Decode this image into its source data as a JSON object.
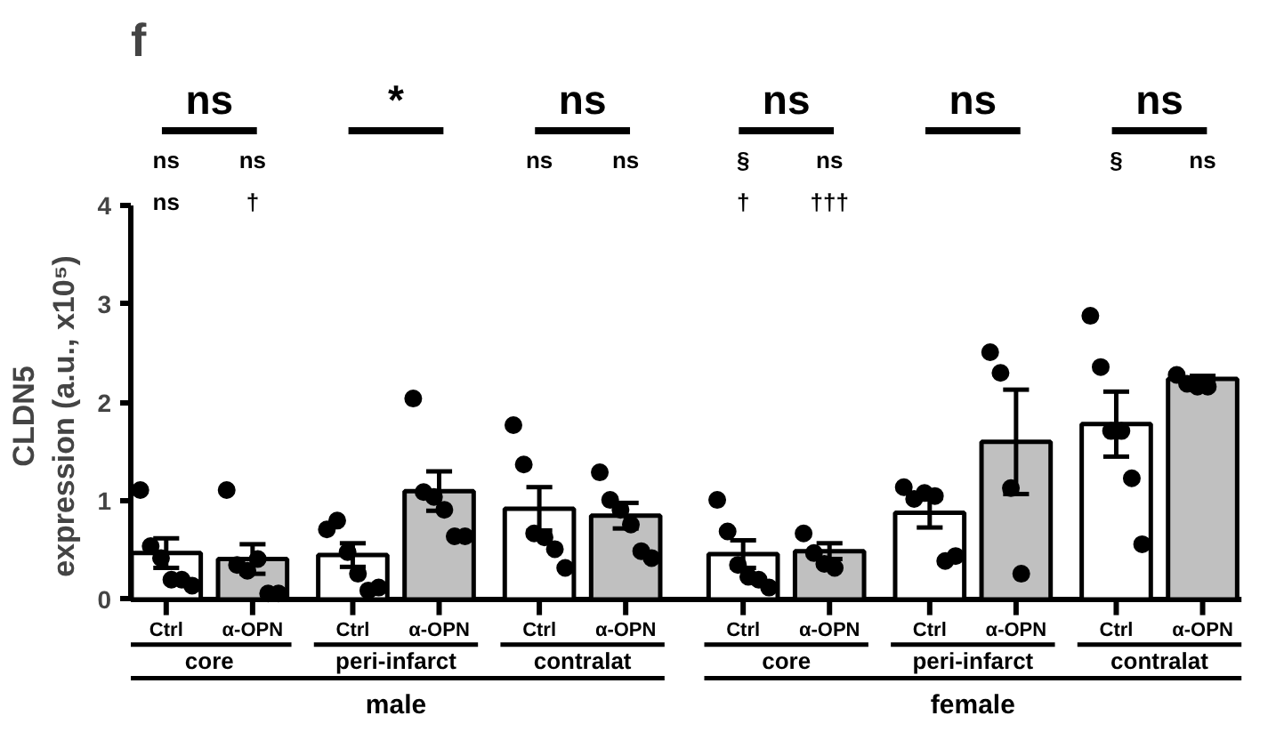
{
  "chart_data": {
    "type": "bar",
    "title": "f",
    "ylabel": "CLDN5\nexpression (a.u., x10⁵)",
    "categories": [
      "Ctrl",
      "α-OPN",
      "Ctrl",
      "α-OPN",
      "Ctrl",
      "α-OPN",
      "Ctrl",
      "α-OPN",
      "Ctrl",
      "α-OPN",
      "Ctrl",
      "α-OPN"
    ],
    "ylim": [
      0,
      4
    ],
    "yticks": [
      0,
      1,
      2,
      3,
      4
    ],
    "marker": "circle",
    "series": [
      {
        "type": "bar",
        "colors": [
          "#ffffff",
          "#c0c0c0",
          "#ffffff",
          "#c0c0c0",
          "#ffffff",
          "#c0c0c0",
          "#ffffff",
          "#c0c0c0",
          "#ffffff",
          "#c0c0c0",
          "#ffffff",
          "#c0c0c0"
        ],
        "values": [
          0.47,
          0.41,
          0.45,
          1.1,
          0.92,
          0.85,
          0.46,
          0.49,
          0.88,
          1.6,
          1.78,
          2.24
        ],
        "errors": [
          0.15,
          0.15,
          0.12,
          0.2,
          0.22,
          0.13,
          0.14,
          0.08,
          0.15,
          0.53,
          0.33,
          0.03
        ]
      },
      {
        "type": "scatter",
        "color": "#000000",
        "values": [
          1.11,
          1.11,
          0.71,
          2.04,
          1.77,
          1.29,
          1.01,
          0.67,
          1.14,
          2.51,
          2.88,
          2.28
        ]
      },
      {
        "type": "scatter",
        "color": "#000000",
        "values": [
          0.54,
          0.35,
          0.8,
          1.09,
          1.37,
          1.01,
          0.69,
          0.47,
          1.02,
          2.3,
          2.36,
          2.19
        ]
      },
      {
        "type": "scatter",
        "color": "#000000",
        "values": [
          0.42,
          0.29,
          0.48,
          1.04,
          0.67,
          0.91,
          0.35,
          0.36,
          1.08,
          1.13,
          1.71,
          2.16
        ]
      },
      {
        "type": "scatter",
        "color": "#000000",
        "values": [
          0.2,
          0.41,
          0.26,
          0.91,
          0.63,
          0.76,
          0.23,
          0.32,
          1.05,
          0.26,
          1.71,
          2.16
        ]
      },
      {
        "type": "scatter",
        "color": "#000000",
        "values": [
          0.2,
          0.06,
          0.09,
          0.64,
          0.51,
          0.49,
          0.2,
          null,
          0.39,
          null,
          1.23,
          null
        ]
      },
      {
        "type": "scatter",
        "color": "#000000",
        "values": [
          0.14,
          0.06,
          0.12,
          0.64,
          0.32,
          0.42,
          0.12,
          null,
          0.44,
          null,
          0.56,
          null
        ]
      }
    ],
    "annotations": [
      "ns",
      "*",
      "ns",
      "ns",
      "ns",
      "ns",
      "ns",
      "ns",
      "ns",
      "ns",
      "§",
      "ns",
      "§",
      "ns",
      "ns",
      "†",
      "†",
      "†††",
      "core",
      "peri-infarct",
      "contralat",
      "core",
      "peri-infarct",
      "contralat",
      "male",
      "female"
    ]
  }
}
